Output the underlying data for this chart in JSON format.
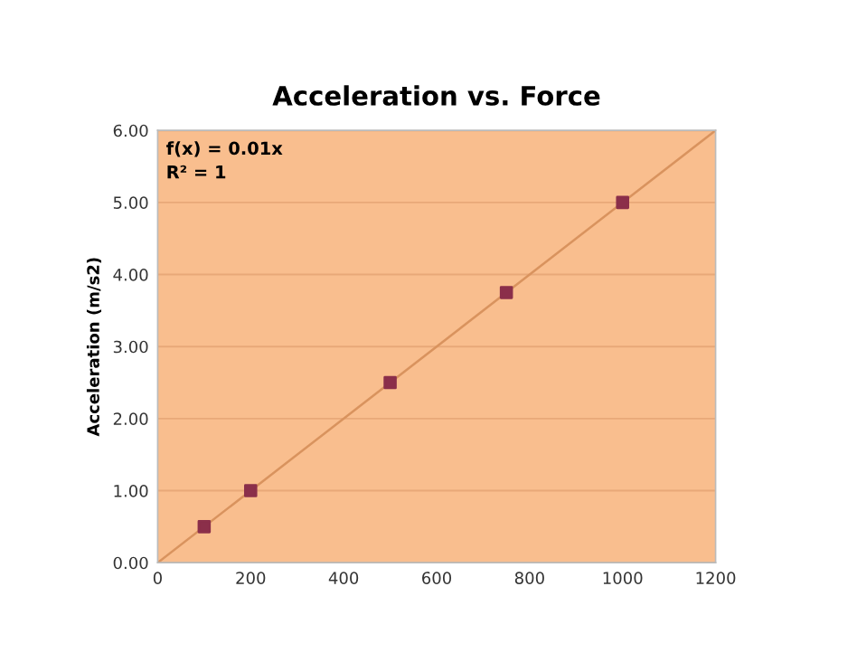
{
  "chart_data": {
    "type": "scatter",
    "title": "Acceleration vs. Force",
    "ylabel": "Acceleration (m/s2)",
    "x": [
      100,
      200,
      500,
      750,
      1000
    ],
    "series": [
      {
        "color": "#8b2f4a",
        "values": [
          0.5,
          1.0,
          2.5,
          3.75,
          5.0
        ],
        "marker": "square"
      },
      {
        "type": "line",
        "color": "#d9935e",
        "x": [
          0,
          1200
        ],
        "values": [
          0,
          6
        ],
        "marker": "none",
        "line_style": "solid"
      }
    ],
    "annotations": [
      "f(x) = 0.01x",
      "R² = 1"
    ],
    "xlim": [
      0,
      1200
    ],
    "xticks": [
      0,
      200,
      400,
      600,
      800,
      1000,
      1200
    ],
    "ylim": [
      0,
      6
    ],
    "yticks": [
      {
        "value": 0,
        "label": "0.00"
      },
      {
        "value": 1,
        "label": "1.00"
      },
      {
        "value": 2,
        "label": "2.00"
      },
      {
        "value": 3,
        "label": "3.00"
      },
      {
        "value": 4,
        "label": "4.00"
      },
      {
        "value": 5,
        "label": "5.00"
      },
      {
        "value": 6,
        "label": "6.00"
      }
    ],
    "grid": "y"
  }
}
